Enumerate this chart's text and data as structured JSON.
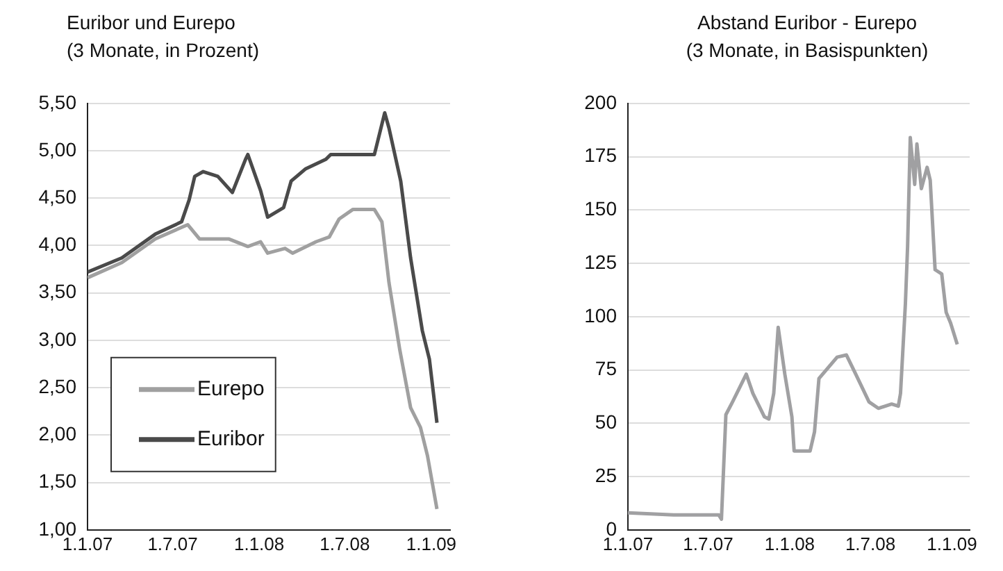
{
  "chart_data": [
    {
      "type": "line",
      "title": "Euribor und Eurepo",
      "subtitle": "(3 Monate, in Prozent)",
      "series": [
        {
          "name": "Eurepo",
          "color": "#a0a0a0",
          "x": [
            "2007-01-01",
            "2007-03-15",
            "2007-05-25",
            "2007-08-02",
            "2007-08-27",
            "2007-10-28",
            "2007-12-08",
            "2008-01-04",
            "2008-01-19",
            "2008-02-25",
            "2008-03-12",
            "2008-05-01",
            "2008-05-29",
            "2008-06-19",
            "2008-07-18",
            "2008-09-02",
            "2008-09-18",
            "2008-10-03",
            "2008-10-26",
            "2008-11-18",
            "2008-12-09",
            "2008-12-24",
            "2009-01-13"
          ],
          "values": [
            3.66,
            3.82,
            4.07,
            4.22,
            4.07,
            4.07,
            3.99,
            4.04,
            3.92,
            3.97,
            3.92,
            4.04,
            4.09,
            4.28,
            4.38,
            4.38,
            4.25,
            3.61,
            2.9,
            2.29,
            2.08,
            1.78,
            1.22
          ]
        },
        {
          "name": "Euribor",
          "color": "#4a4a4a",
          "x": [
            "2007-01-01",
            "2007-03-15",
            "2007-05-25",
            "2007-07-20",
            "2007-08-05",
            "2007-08-17",
            "2007-09-04",
            "2007-10-05",
            "2007-11-05",
            "2007-12-03",
            "2007-12-08",
            "2008-01-04",
            "2008-01-19",
            "2008-02-22",
            "2008-03-09",
            "2008-04-09",
            "2008-05-22",
            "2008-06-01",
            "2008-09-02",
            "2008-09-24",
            "2008-10-03",
            "2008-10-28",
            "2008-11-18",
            "2008-12-13",
            "2008-12-28",
            "2009-01-13"
          ],
          "values": [
            3.72,
            3.87,
            4.12,
            4.25,
            4.48,
            4.73,
            4.78,
            4.73,
            4.56,
            4.91,
            4.96,
            4.58,
            4.3,
            4.4,
            4.68,
            4.81,
            4.91,
            4.96,
            4.96,
            5.4,
            5.24,
            4.68,
            3.87,
            3.1,
            2.8,
            2.13
          ]
        }
      ],
      "xlim": [
        "2007-01-01",
        "2009-02-10"
      ],
      "xticks": [
        {
          "value": "2007-01-01",
          "label": "1.1.07"
        },
        {
          "value": "2007-07-01",
          "label": "1.7.07"
        },
        {
          "value": "2008-01-01",
          "label": "1.1.08"
        },
        {
          "value": "2008-07-01",
          "label": "1.7.08"
        },
        {
          "value": "2009-01-01",
          "label": "1.1.09"
        }
      ],
      "ylim": [
        1,
        5.5
      ],
      "yticks": [
        {
          "value": 1,
          "label": "1,00"
        },
        {
          "value": 1.5,
          "label": "1,50"
        },
        {
          "value": 2,
          "label": "2,00"
        },
        {
          "value": 2.5,
          "label": "2,50"
        },
        {
          "value": 3,
          "label": "3,00"
        },
        {
          "value": 3.5,
          "label": "3,50"
        },
        {
          "value": 4,
          "label": "4,00"
        },
        {
          "value": 4.5,
          "label": "4,50"
        },
        {
          "value": 5,
          "label": "5,00"
        },
        {
          "value": 5.5,
          "label": "5,50"
        }
      ],
      "grid": "y",
      "legend": "bottom left",
      "marker": "none"
    },
    {
      "type": "line",
      "title": "Abstand Euribor - Eurepo",
      "subtitle": "(3 Monate, in Basispunkten)",
      "series": [
        {
          "color": "#a0a0a2",
          "x": [
            "2007-01-01",
            "2007-04-14",
            "2007-07-25",
            "2007-07-31",
            "2007-08-10",
            "2007-08-25",
            "2007-09-25",
            "2007-10-10",
            "2007-11-05",
            "2007-11-15",
            "2007-11-26",
            "2007-12-06",
            "2007-12-21",
            "2008-01-06",
            "2008-01-11",
            "2008-02-16",
            "2008-02-26",
            "2008-03-07",
            "2008-04-17",
            "2008-05-08",
            "2008-05-29",
            "2008-06-28",
            "2008-07-19",
            "2008-08-18",
            "2008-09-02",
            "2008-09-07",
            "2008-09-18",
            "2008-09-23",
            "2008-09-29",
            "2008-10-09",
            "2008-10-14",
            "2008-10-24",
            "2008-11-06",
            "2008-11-13",
            "2008-11-24",
            "2008-12-09",
            "2008-12-19",
            "2008-12-29",
            "2009-01-13"
          ],
          "values": [
            8,
            7,
            7,
            5,
            54,
            60,
            73,
            64,
            53,
            52,
            64,
            95,
            73,
            53,
            37,
            37,
            46,
            71,
            81,
            82,
            73,
            60,
            57,
            59,
            58,
            64,
            106,
            133,
            184,
            162,
            181,
            160,
            170,
            164,
            122,
            120,
            102,
            97,
            87
          ]
        }
      ],
      "xlim": [
        "2007-01-01",
        "2009-02-10"
      ],
      "xticks": [
        {
          "value": "2007-01-01",
          "label": "1.1.07"
        },
        {
          "value": "2007-07-01",
          "label": "1.7.07"
        },
        {
          "value": "2008-01-01",
          "label": "1.1.08"
        },
        {
          "value": "2008-07-01",
          "label": "1.7.08"
        },
        {
          "value": "2009-01-01",
          "label": "1.1.09"
        }
      ],
      "ylim": [
        0,
        200
      ],
      "yticks": [
        0,
        25,
        50,
        75,
        100,
        125,
        150,
        175,
        200
      ],
      "grid": "y",
      "marker": "none"
    }
  ]
}
